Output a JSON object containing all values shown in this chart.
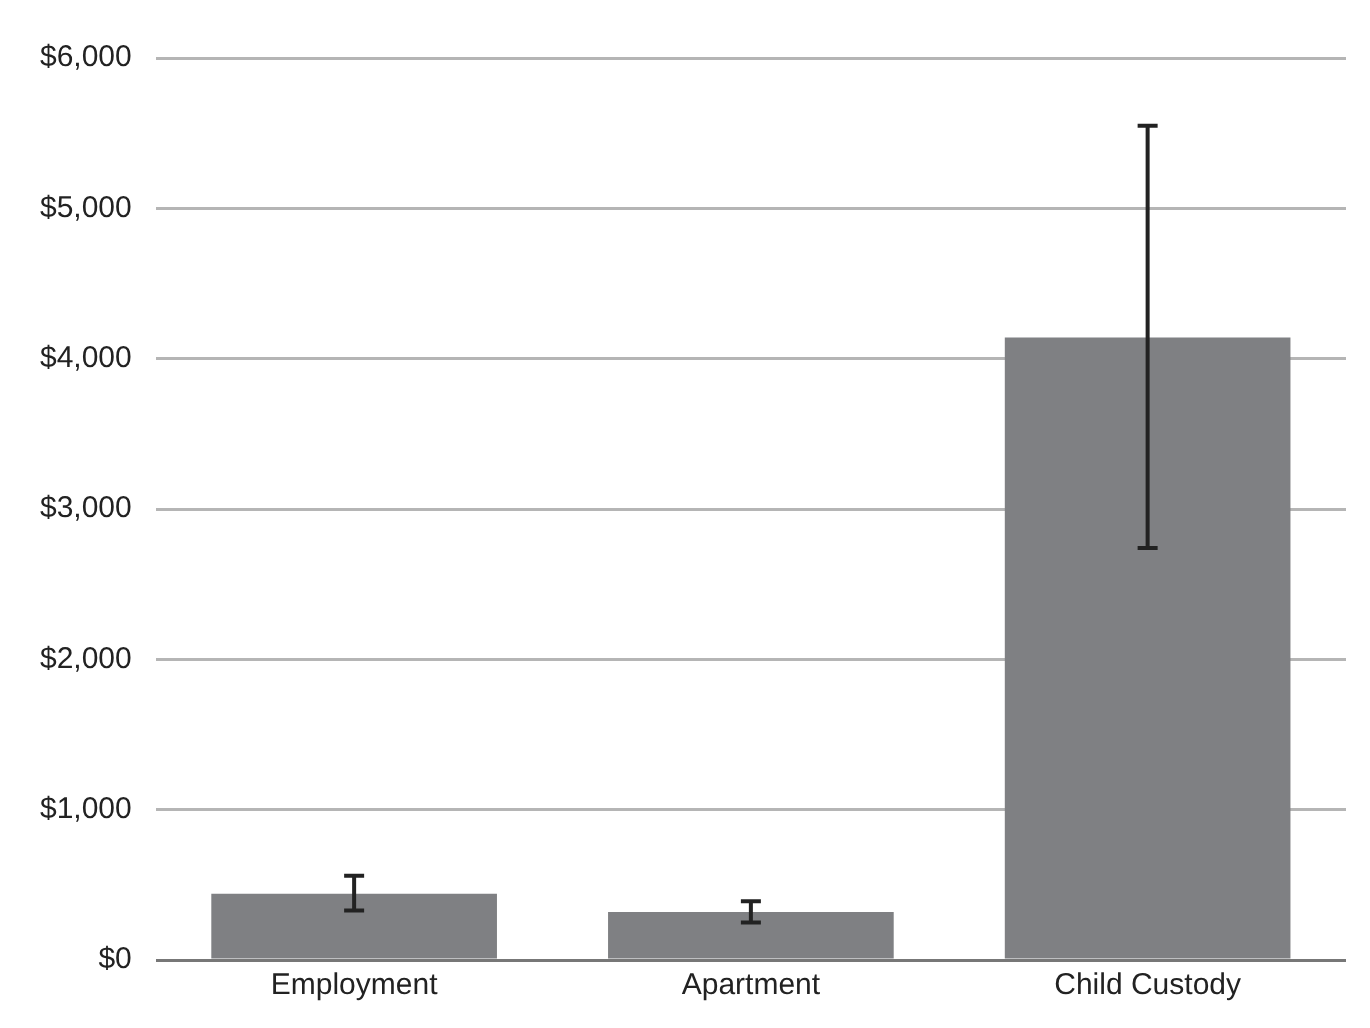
{
  "chart_data": {
    "type": "bar",
    "categories": [
      "Employment",
      "Apartment",
      "Child Custody"
    ],
    "values": [
      440,
      320,
      4140
    ],
    "color": "#7f8083",
    "errors": [
      [
        330,
        560
      ],
      [
        250,
        390
      ],
      [
        2740,
        5550
      ]
    ],
    "ylim": [
      0,
      6000
    ],
    "yticks": [
      {
        "value": 0,
        "label": "$0"
      },
      {
        "value": 1000,
        "label": "$1,000"
      },
      {
        "value": 2000,
        "label": "$2,000"
      },
      {
        "value": 3000,
        "label": "$3,000"
      },
      {
        "value": 4000,
        "label": "$4,000"
      },
      {
        "value": 5000,
        "label": "$5,000"
      },
      {
        "value": 6000,
        "label": "$6,000"
      }
    ],
    "grid": "y",
    "legend": false
  }
}
